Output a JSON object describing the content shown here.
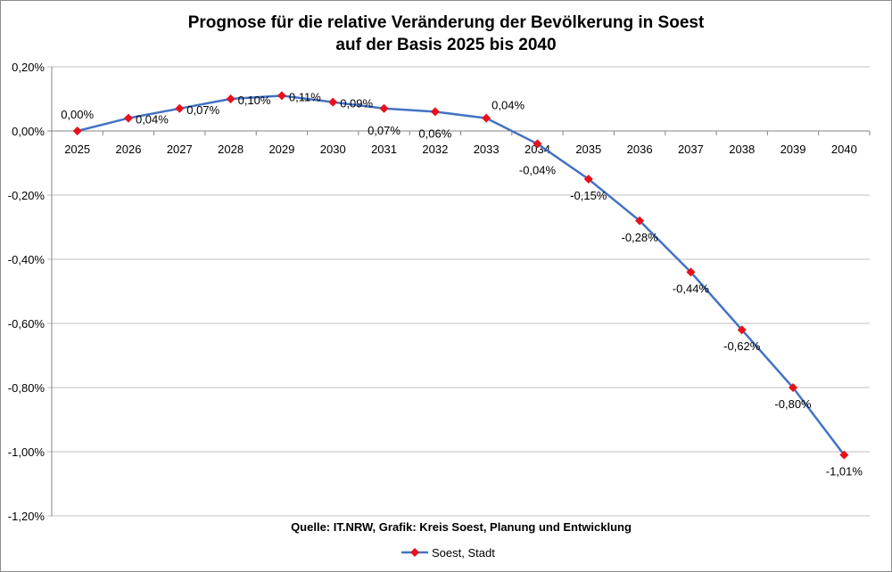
{
  "chart_data": {
    "type": "line",
    "title": [
      "Prognose für die relative Veränderung der Bevölkerung in Soest",
      "auf der Basis 2025 bis 2040"
    ],
    "categories": [
      "2025",
      "2026",
      "2027",
      "2028",
      "2029",
      "2030",
      "2031",
      "2032",
      "2033",
      "2034",
      "2035",
      "2036",
      "2037",
      "2038",
      "2039",
      "2040"
    ],
    "series": [
      {
        "name": "Soest, Stadt",
        "values": [
          0.0,
          0.04,
          0.07,
          0.1,
          0.11,
          0.09,
          0.07,
          0.06,
          0.04,
          -0.04,
          -0.15,
          -0.28,
          -0.44,
          -0.62,
          -0.8,
          -1.01
        ],
        "labels": [
          "0,00%",
          "0,04%",
          "0,07%",
          "0,10%",
          "0,11%",
          "0,09%",
          "0,07%",
          "0,06%",
          "0,04%",
          "-0,04%",
          "-0,15%",
          "-0,28%",
          "-0,44%",
          "-0,62%",
          "-0,80%",
          "-1,01%"
        ],
        "line_color": "#4472c4",
        "marker_color": "#e8101a",
        "marker": "diamond"
      }
    ],
    "ylim": [
      -1.2,
      0.2
    ],
    "yticks": [
      0.2,
      0,
      -0.2,
      -0.4,
      -0.6,
      -0.8,
      -1.0,
      -1.2
    ],
    "ytick_labels": [
      "0,20%",
      "0,00%",
      "-0,20%",
      "-0,40%",
      "-0,60%",
      "-0,80%",
      "-1,00%",
      "-1,20%"
    ],
    "grid": "horizontal",
    "legend": "bottom",
    "source": "Quelle: IT.NRW, Grafik: Kreis Soest, Planung und Entwicklung"
  }
}
